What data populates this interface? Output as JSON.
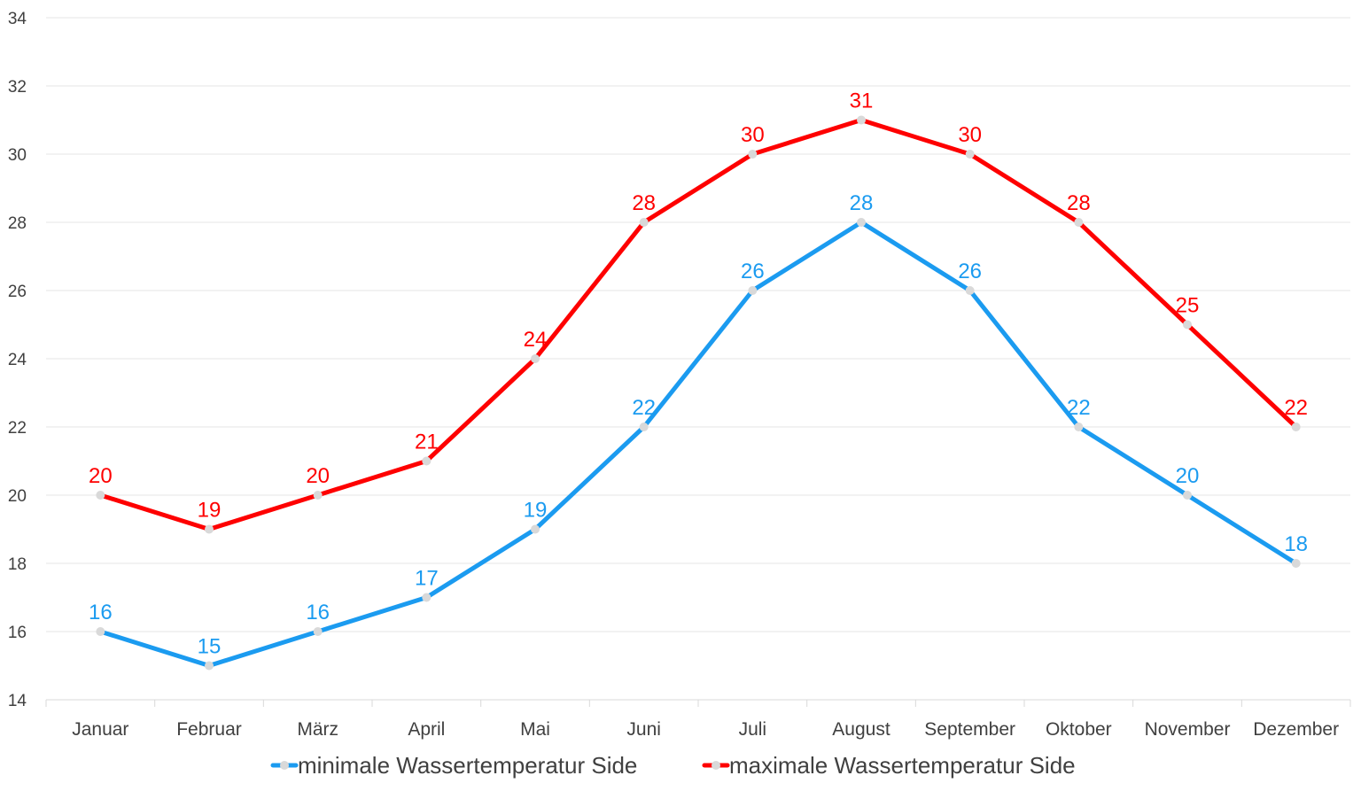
{
  "chart_data": {
    "type": "line",
    "title": "",
    "xlabel": "",
    "ylabel": "",
    "categories": [
      "Januar",
      "Februar",
      "März",
      "April",
      "Mai",
      "Juni",
      "Juli",
      "August",
      "September",
      "Oktober",
      "November",
      "Dezember"
    ],
    "ylim": [
      14,
      34
    ],
    "yticks": [
      14,
      16,
      18,
      20,
      22,
      24,
      26,
      28,
      30,
      32,
      34
    ],
    "grid": true,
    "legend_position": "bottom",
    "series": [
      {
        "name": "minimale Wassertemperatur Side",
        "color": "#1b9bf0",
        "values": [
          16,
          15,
          16,
          17,
          19,
          22,
          26,
          28,
          26,
          22,
          20,
          18
        ]
      },
      {
        "name": "maximale Wassertemperatur Side",
        "color": "#fe0000",
        "values": [
          20,
          19,
          20,
          21,
          24,
          28,
          30,
          31,
          30,
          28,
          25,
          22
        ]
      }
    ],
    "marker_color": "#d9d9d9",
    "data_labels": true
  }
}
